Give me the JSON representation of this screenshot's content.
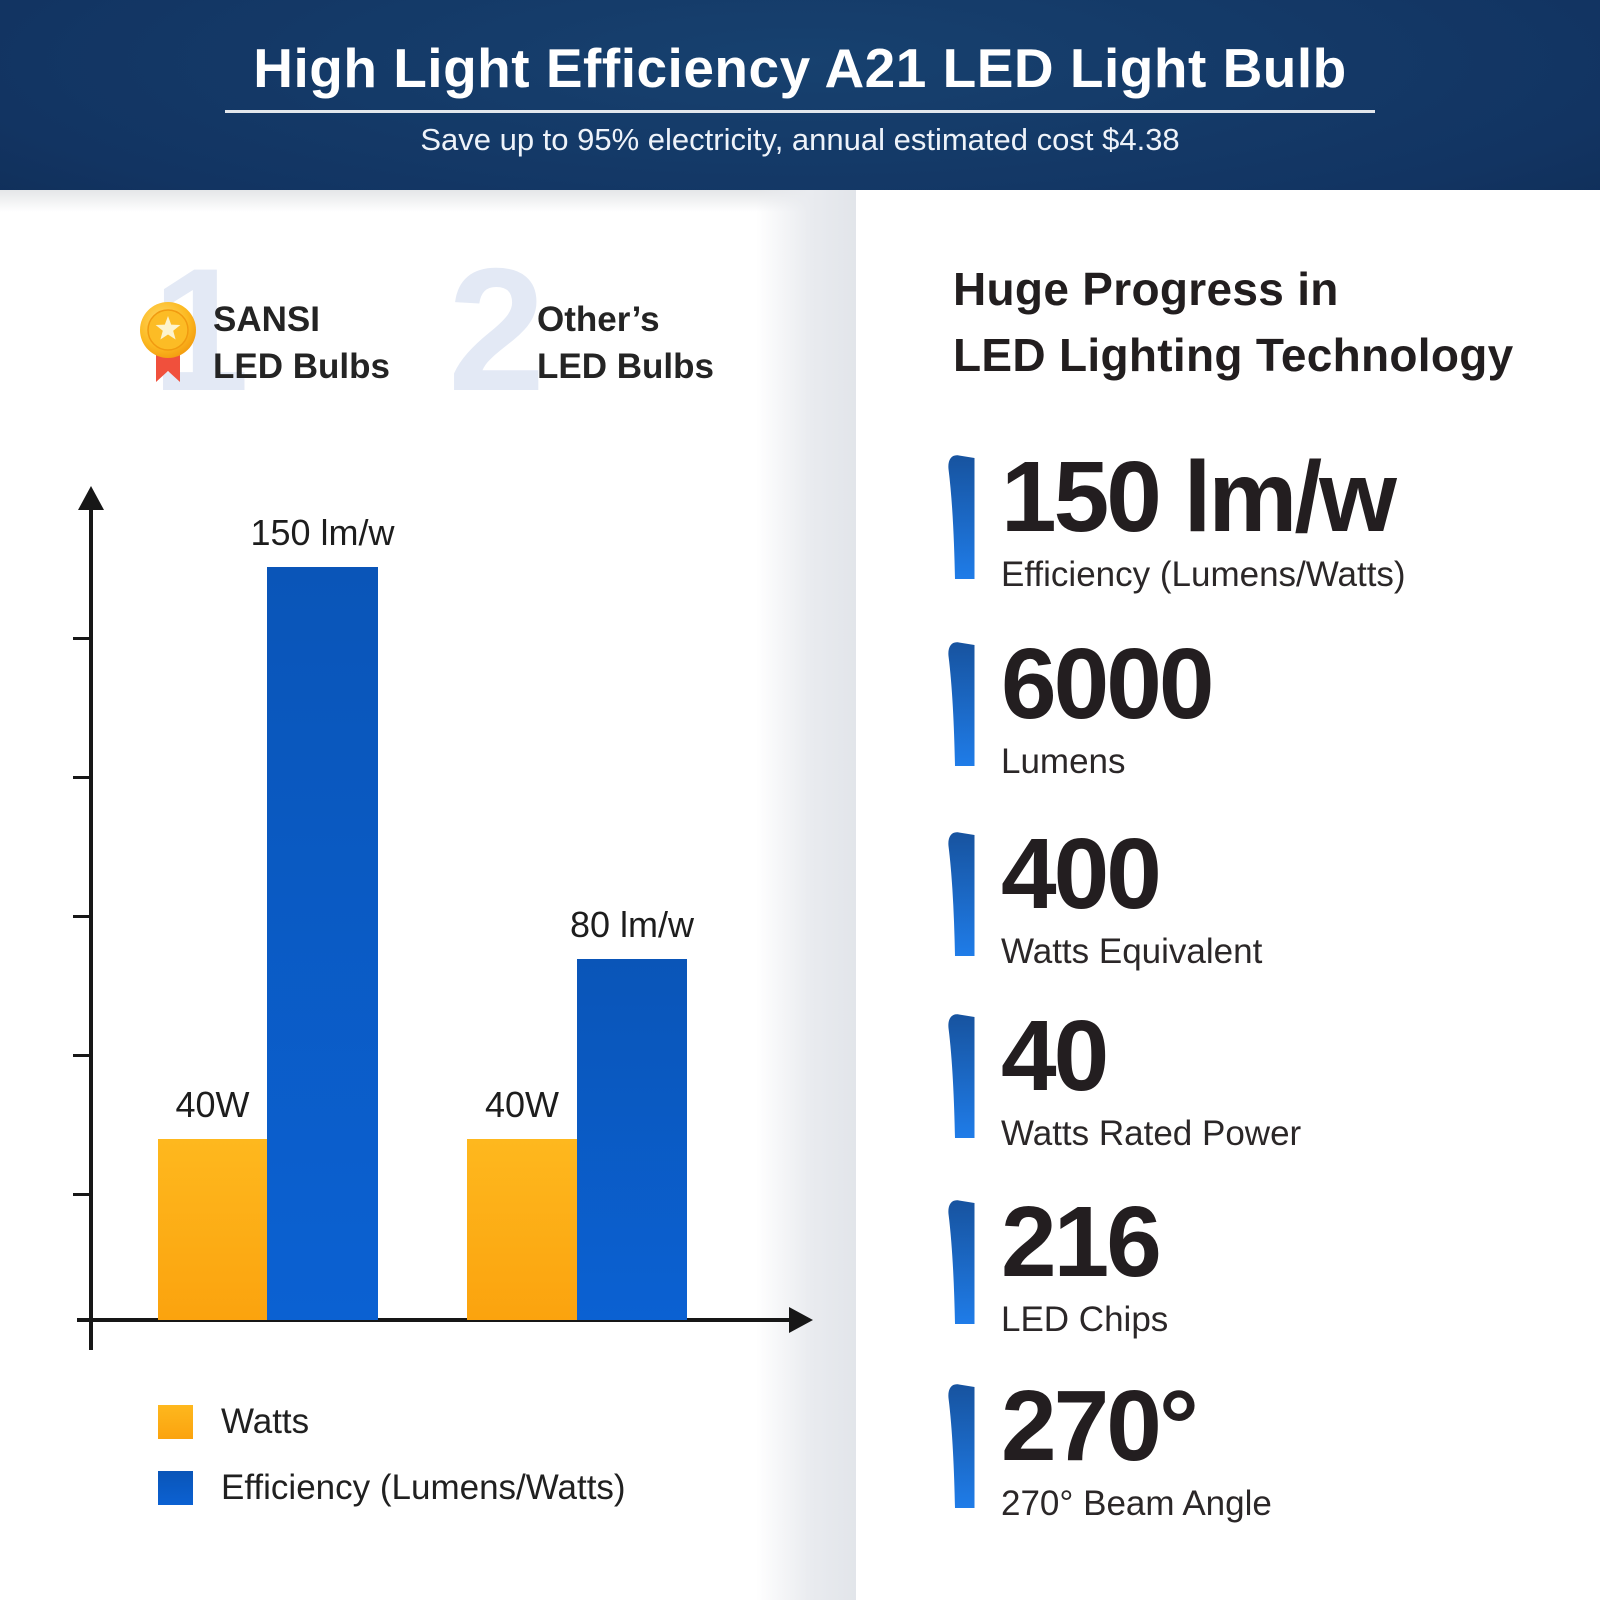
{
  "header": {
    "title": "High Light Efficiency A21 LED Light Bulb",
    "subtitle": "Save up to 95% electricity, annual estimated cost $4.38"
  },
  "comparison": {
    "groups": [
      {
        "rank": "1",
        "brand": "SANSI",
        "line2": "LED Bulbs",
        "badge": "gold-medal"
      },
      {
        "rank": "2",
        "brand": "Other’s",
        "line2": "LED Bulbs",
        "badge": "none"
      }
    ]
  },
  "chart_data": {
    "type": "bar",
    "title": "",
    "categories": [
      "SANSI LED Bulbs",
      "Other’s LED Bulbs"
    ],
    "series": [
      {
        "name": "Watts",
        "values": [
          40,
          40
        ],
        "labels": [
          "40W",
          "40W"
        ],
        "color": "#feb81e",
        "color2": "#fba30e"
      },
      {
        "name": "Efficiency (Lumens/Watts)",
        "values": [
          150,
          80
        ],
        "labels": [
          "150 lm/w",
          "80 lm/w"
        ],
        "color": "#0a55b8",
        "color2": "#0b61d2"
      }
    ],
    "xlabel": "",
    "ylabel": "",
    "axes": {
      "y_tick_count": 5,
      "tick_labels_shown": false
    },
    "grid": false,
    "legend_position": "bottom-left"
  },
  "right_panel": {
    "heading_line1": "Huge Progress in",
    "heading_line2": "LED Lighting Technology",
    "accent_color": "#1e7be5",
    "stats": [
      {
        "value": "150 lm/w",
        "label": "Efficiency (Lumens/Watts)"
      },
      {
        "value": "6000",
        "label": "Lumens"
      },
      {
        "value": "400",
        "label": "Watts Equivalent"
      },
      {
        "value": "40",
        "label": "Watts Rated Power"
      },
      {
        "value": "216",
        "label": "LED Chips"
      },
      {
        "value": "270°",
        "label": "270° Beam Angle"
      }
    ]
  },
  "colors": {
    "header_navy": "#123462",
    "watermark_blue": "#e3e9f5",
    "bar_blue": "#0b5ac2",
    "bar_orange": "#fcae13",
    "medal_gold": "#fcb81f",
    "medal_ribbon_red": "#f0503c"
  }
}
